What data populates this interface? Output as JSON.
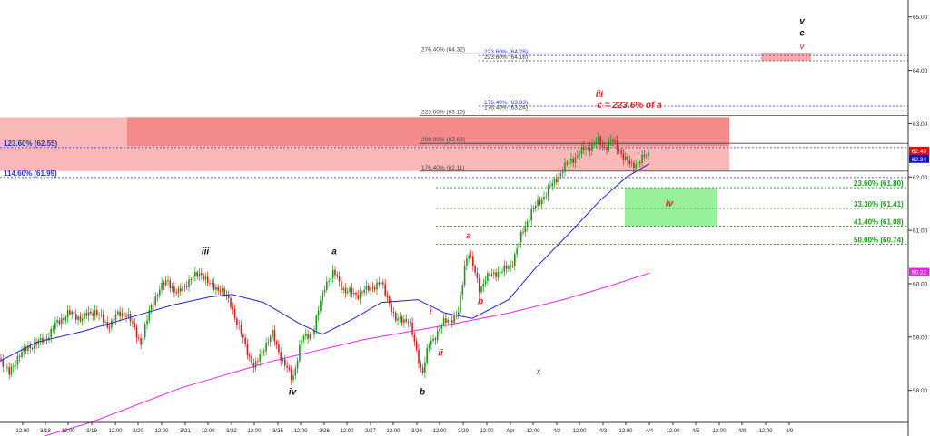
{
  "chart_data": {
    "type": "candlestick",
    "ylim": [
      57.4,
      65.25
    ],
    "xlim": [
      0,
      1000
    ],
    "grid": false,
    "y_ticks": [
      {
        "value": 65.0,
        "label": "65.00"
      },
      {
        "value": 64.0,
        "label": "64.00"
      },
      {
        "value": 63.0,
        "label": "63.00"
      },
      {
        "value": 62.0,
        "label": "62.00"
      },
      {
        "value": 61.0,
        "label": "61.00"
      },
      {
        "value": 60.0,
        "label": "60.00"
      },
      {
        "value": 59.0,
        "label": "59.00"
      },
      {
        "value": 58.0,
        "label": "58.00"
      }
    ],
    "x_ticks": [
      {
        "x": 25,
        "label": "12:00"
      },
      {
        "x": 50,
        "label": "3/18"
      },
      {
        "x": 75,
        "label": "12:00"
      },
      {
        "x": 101,
        "label": "3/19"
      },
      {
        "x": 127,
        "label": "12:00"
      },
      {
        "x": 152,
        "label": "3/20"
      },
      {
        "x": 178,
        "label": "12:00"
      },
      {
        "x": 204,
        "label": "3/21"
      },
      {
        "x": 229,
        "label": "12:00"
      },
      {
        "x": 255,
        "label": "3/22"
      },
      {
        "x": 280,
        "label": "12:00"
      },
      {
        "x": 306,
        "label": "3/25"
      },
      {
        "x": 331,
        "label": "12:00"
      },
      {
        "x": 357,
        "label": "3/26"
      },
      {
        "x": 382,
        "label": "12:00"
      },
      {
        "x": 408,
        "label": "3/27"
      },
      {
        "x": 433,
        "label": "12:00"
      },
      {
        "x": 459,
        "label": "3/28"
      },
      {
        "x": 484,
        "label": "12:00"
      },
      {
        "x": 510,
        "label": "3/29"
      },
      {
        "x": 536,
        "label": "12:00"
      },
      {
        "x": 562,
        "label": "Apr"
      },
      {
        "x": 587,
        "label": "12:00"
      },
      {
        "x": 613,
        "label": "4/2"
      },
      {
        "x": 638,
        "label": "12:00"
      },
      {
        "x": 664,
        "label": "4/3"
      },
      {
        "x": 689,
        "label": "12:00"
      },
      {
        "x": 715,
        "label": "4/4"
      },
      {
        "x": 741,
        "label": "12:00"
      },
      {
        "x": 766,
        "label": "4/5"
      },
      {
        "x": 792,
        "label": "12:00"
      },
      {
        "x": 817,
        "label": "4/8"
      },
      {
        "x": 843,
        "label": "12:00"
      },
      {
        "x": 869,
        "label": "4/9"
      }
    ],
    "price_anchors": [
      [
        0,
        58.6
      ],
      [
        10,
        58.3
      ],
      [
        20,
        58.65
      ],
      [
        35,
        58.85
      ],
      [
        50,
        58.95
      ],
      [
        62,
        59.25
      ],
      [
        75,
        59.45
      ],
      [
        90,
        59.35
      ],
      [
        105,
        59.5
      ],
      [
        118,
        59.2
      ],
      [
        128,
        59.4
      ],
      [
        140,
        59.45
      ],
      [
        150,
        59.05
      ],
      [
        155,
        58.9
      ],
      [
        165,
        59.5
      ],
      [
        175,
        59.9
      ],
      [
        185,
        60.05
      ],
      [
        195,
        59.8
      ],
      [
        210,
        60.1
      ],
      [
        222,
        60.2
      ],
      [
        232,
        59.95
      ],
      [
        243,
        59.9
      ],
      [
        255,
        59.6
      ],
      [
        262,
        59.2
      ],
      [
        270,
        58.85
      ],
      [
        280,
        58.4
      ],
      [
        290,
        58.8
      ],
      [
        300,
        59.05
      ],
      [
        310,
        58.6
      ],
      [
        322,
        58.2
      ],
      [
        332,
        58.95
      ],
      [
        345,
        59.1
      ],
      [
        358,
        60.0
      ],
      [
        368,
        60.2
      ],
      [
        380,
        59.85
      ],
      [
        395,
        59.8
      ],
      [
        410,
        59.95
      ],
      [
        420,
        60.0
      ],
      [
        428,
        59.7
      ],
      [
        435,
        59.3
      ],
      [
        443,
        59.35
      ],
      [
        450,
        59.3
      ],
      [
        458,
        58.8
      ],
      [
        465,
        58.3
      ],
      [
        472,
        58.85
      ],
      [
        480,
        59.05
      ],
      [
        490,
        59.3
      ],
      [
        498,
        59.35
      ],
      [
        505,
        59.45
      ],
      [
        512,
        60.4
      ],
      [
        516,
        60.6
      ],
      [
        522,
        60.25
      ],
      [
        528,
        59.9
      ],
      [
        535,
        60.1
      ],
      [
        545,
        60.2
      ],
      [
        555,
        60.25
      ],
      [
        563,
        60.35
      ],
      [
        568,
        60.6
      ],
      [
        575,
        60.95
      ],
      [
        585,
        61.35
      ],
      [
        595,
        61.55
      ],
      [
        603,
        61.75
      ],
      [
        612,
        61.95
      ],
      [
        620,
        62.15
      ],
      [
        628,
        62.3
      ],
      [
        638,
        62.45
      ],
      [
        648,
        62.55
      ],
      [
        658,
        62.68
      ],
      [
        665,
        62.55
      ],
      [
        673,
        62.68
      ],
      [
        680,
        62.55
      ],
      [
        688,
        62.35
      ],
      [
        695,
        62.2
      ],
      [
        702,
        62.28
      ],
      [
        708,
        62.35
      ],
      [
        715,
        62.43
      ]
    ],
    "series": [
      {
        "name": "",
        "color": "#2222cc",
        "points": [
          [
            0,
            58.55
          ],
          [
            40,
            58.9
          ],
          [
            90,
            59.1
          ],
          [
            140,
            59.35
          ],
          [
            190,
            59.6
          ],
          [
            230,
            59.75
          ],
          [
            255,
            59.8
          ],
          [
            290,
            59.65
          ],
          [
            330,
            59.25
          ],
          [
            355,
            59.05
          ],
          [
            390,
            59.35
          ],
          [
            420,
            59.65
          ],
          [
            460,
            59.7
          ],
          [
            490,
            59.45
          ],
          [
            520,
            59.35
          ],
          [
            560,
            59.7
          ],
          [
            590,
            60.3
          ],
          [
            630,
            61.0
          ],
          [
            660,
            61.55
          ],
          [
            690,
            62.0
          ],
          [
            715,
            62.25
          ]
        ]
      },
      {
        "name": "",
        "color": "#ee22ee",
        "points": [
          [
            0,
            56.9
          ],
          [
            100,
            57.4
          ],
          [
            200,
            58.05
          ],
          [
            300,
            58.55
          ],
          [
            400,
            58.95
          ],
          [
            500,
            59.25
          ],
          [
            560,
            59.45
          ],
          [
            620,
            59.7
          ],
          [
            670,
            59.95
          ],
          [
            715,
            60.2
          ]
        ]
      }
    ],
    "zones": [
      {
        "x0": 0,
        "x1": 803,
        "y0": 62.11,
        "y1": 63.12,
        "color": "#fbb8b8"
      },
      {
        "x0": 140,
        "x1": 803,
        "y0": 62.58,
        "y1": 63.12,
        "color": "#f28a8a"
      },
      {
        "x0": 688,
        "x1": 790,
        "y0": 61.08,
        "y1": 61.8,
        "color": "#98f09a"
      },
      {
        "x0": 838,
        "x1": 893,
        "y0": 64.18,
        "y1": 64.32,
        "color": "#ffaaaa"
      }
    ],
    "h_lines": [
      {
        "y": 64.32,
        "x0": 462,
        "x1": 1000,
        "label": "276.40% (64.32)",
        "lx": 464,
        "color": "#444444",
        "dash": false
      },
      {
        "y": 64.28,
        "x0": 527,
        "x1": 1000,
        "label": "223.60% (64.28)",
        "lx": 533,
        "color": "#3333dd",
        "dash": true
      },
      {
        "y": 64.18,
        "x0": 527,
        "x1": 1000,
        "label": "223.60% (64.18)",
        "lx": 533,
        "color": "#444444",
        "dash": true
      },
      {
        "y": 63.33,
        "x0": 527,
        "x1": 1000,
        "label": "176.40% (63.33)",
        "lx": 533,
        "color": "#3333dd",
        "dash": true
      },
      {
        "y": 63.24,
        "x0": 527,
        "x1": 1000,
        "label": "176.40% (63.24)",
        "lx": 533,
        "color": "#444444",
        "dash": true
      },
      {
        "y": 63.15,
        "x0": 462,
        "x1": 1000,
        "label": "223.60% (63.15)",
        "lx": 464,
        "color": "#444444",
        "dash": false
      },
      {
        "y": 62.63,
        "x0": 462,
        "x1": 1000,
        "label": "200.00% (62.63)",
        "lx": 464,
        "color": "#444444",
        "dash": false
      },
      {
        "y": 62.55,
        "x0": 0,
        "x1": 1000,
        "label": "123.60% (62.55)",
        "lx": 4,
        "color": "#2233cc",
        "dash": true
      },
      {
        "y": 62.11,
        "x0": 462,
        "x1": 1000,
        "label": "176.40% (62.11)",
        "lx": 464,
        "color": "#444444",
        "dash": false
      },
      {
        "y": 61.99,
        "x0": 0,
        "x1": 1000,
        "label": "114.60% (61.99)",
        "lx": 4,
        "color": "#2233cc",
        "dash": true
      },
      {
        "y": 61.8,
        "x0": 480,
        "x1": 1000,
        "label": "23.60% (61.80)",
        "lx": 940,
        "color": "#229922",
        "dash": true
      },
      {
        "y": 61.41,
        "x0": 480,
        "x1": 1000,
        "label": "33.30% (61.41)",
        "lx": 940,
        "color": "#229922",
        "dash": true
      },
      {
        "y": 61.08,
        "x0": 480,
        "x1": 1000,
        "label": "41.40% (61.08)",
        "lx": 940,
        "color": "#229922",
        "dash": true
      },
      {
        "y": 60.74,
        "x0": 480,
        "x1": 1000,
        "label": "50.00% (60.74)",
        "lx": 940,
        "color": "#229922",
        "dash": true
      }
    ],
    "right_badges": [
      {
        "y": 62.49,
        "label": "62.49",
        "bg": "#dd1111",
        "fg": "#ffffff"
      },
      {
        "y": 62.34,
        "label": "62.34",
        "bg": "#1111cc",
        "fg": "#ffffff"
      },
      {
        "y": 60.22,
        "label": "60.22",
        "bg": "#ee22ee",
        "fg": "#ffffff"
      }
    ],
    "annotations": [
      {
        "text": "iii",
        "x": 226,
        "y": 60.55,
        "color": "#111111",
        "italic": true,
        "bold": true
      },
      {
        "text": "a",
        "x": 368,
        "y": 60.55,
        "color": "#111111",
        "italic": true,
        "bold": true
      },
      {
        "text": "iv",
        "x": 322,
        "y": 57.92,
        "color": "#111111",
        "italic": true,
        "bold": true
      },
      {
        "text": "b",
        "x": 465,
        "y": 57.92,
        "color": "#111111",
        "italic": true,
        "bold": true
      },
      {
        "text": "a",
        "x": 516,
        "y": 60.85,
        "color": "#dd2222",
        "italic": true,
        "bold": true
      },
      {
        "text": "b",
        "x": 529,
        "y": 59.62,
        "color": "#dd2222",
        "italic": true,
        "bold": true
      },
      {
        "text": "i",
        "x": 474,
        "y": 59.42,
        "color": "#dd2222",
        "italic": true,
        "bold": true
      },
      {
        "text": "ii",
        "x": 485,
        "y": 58.65,
        "color": "#dd2222",
        "italic": true,
        "bold": true
      },
      {
        "text": "iii",
        "x": 660,
        "y": 63.5,
        "color": "#dd2222",
        "italic": true,
        "bold": true
      },
      {
        "text": "c = 223.6% of a",
        "x": 693,
        "y": 63.3,
        "color": "#dd2222",
        "italic": true,
        "bold": true
      },
      {
        "text": "iv",
        "x": 737,
        "y": 61.45,
        "color": "#dd2222",
        "italic": true,
        "bold": true
      },
      {
        "text": "v",
        "x": 883,
        "y": 64.87,
        "color": "#111111",
        "italic": true,
        "bold": true
      },
      {
        "text": "c",
        "x": 883,
        "y": 64.65,
        "color": "#111111",
        "italic": true,
        "bold": true
      },
      {
        "text": "v",
        "x": 883,
        "y": 64.4,
        "color": "#dd2222",
        "italic": true,
        "bold": false
      },
      {
        "text": "x",
        "x": 593,
        "y": 58.3,
        "color": "#555555",
        "italic": true,
        "bold": false
      }
    ]
  }
}
